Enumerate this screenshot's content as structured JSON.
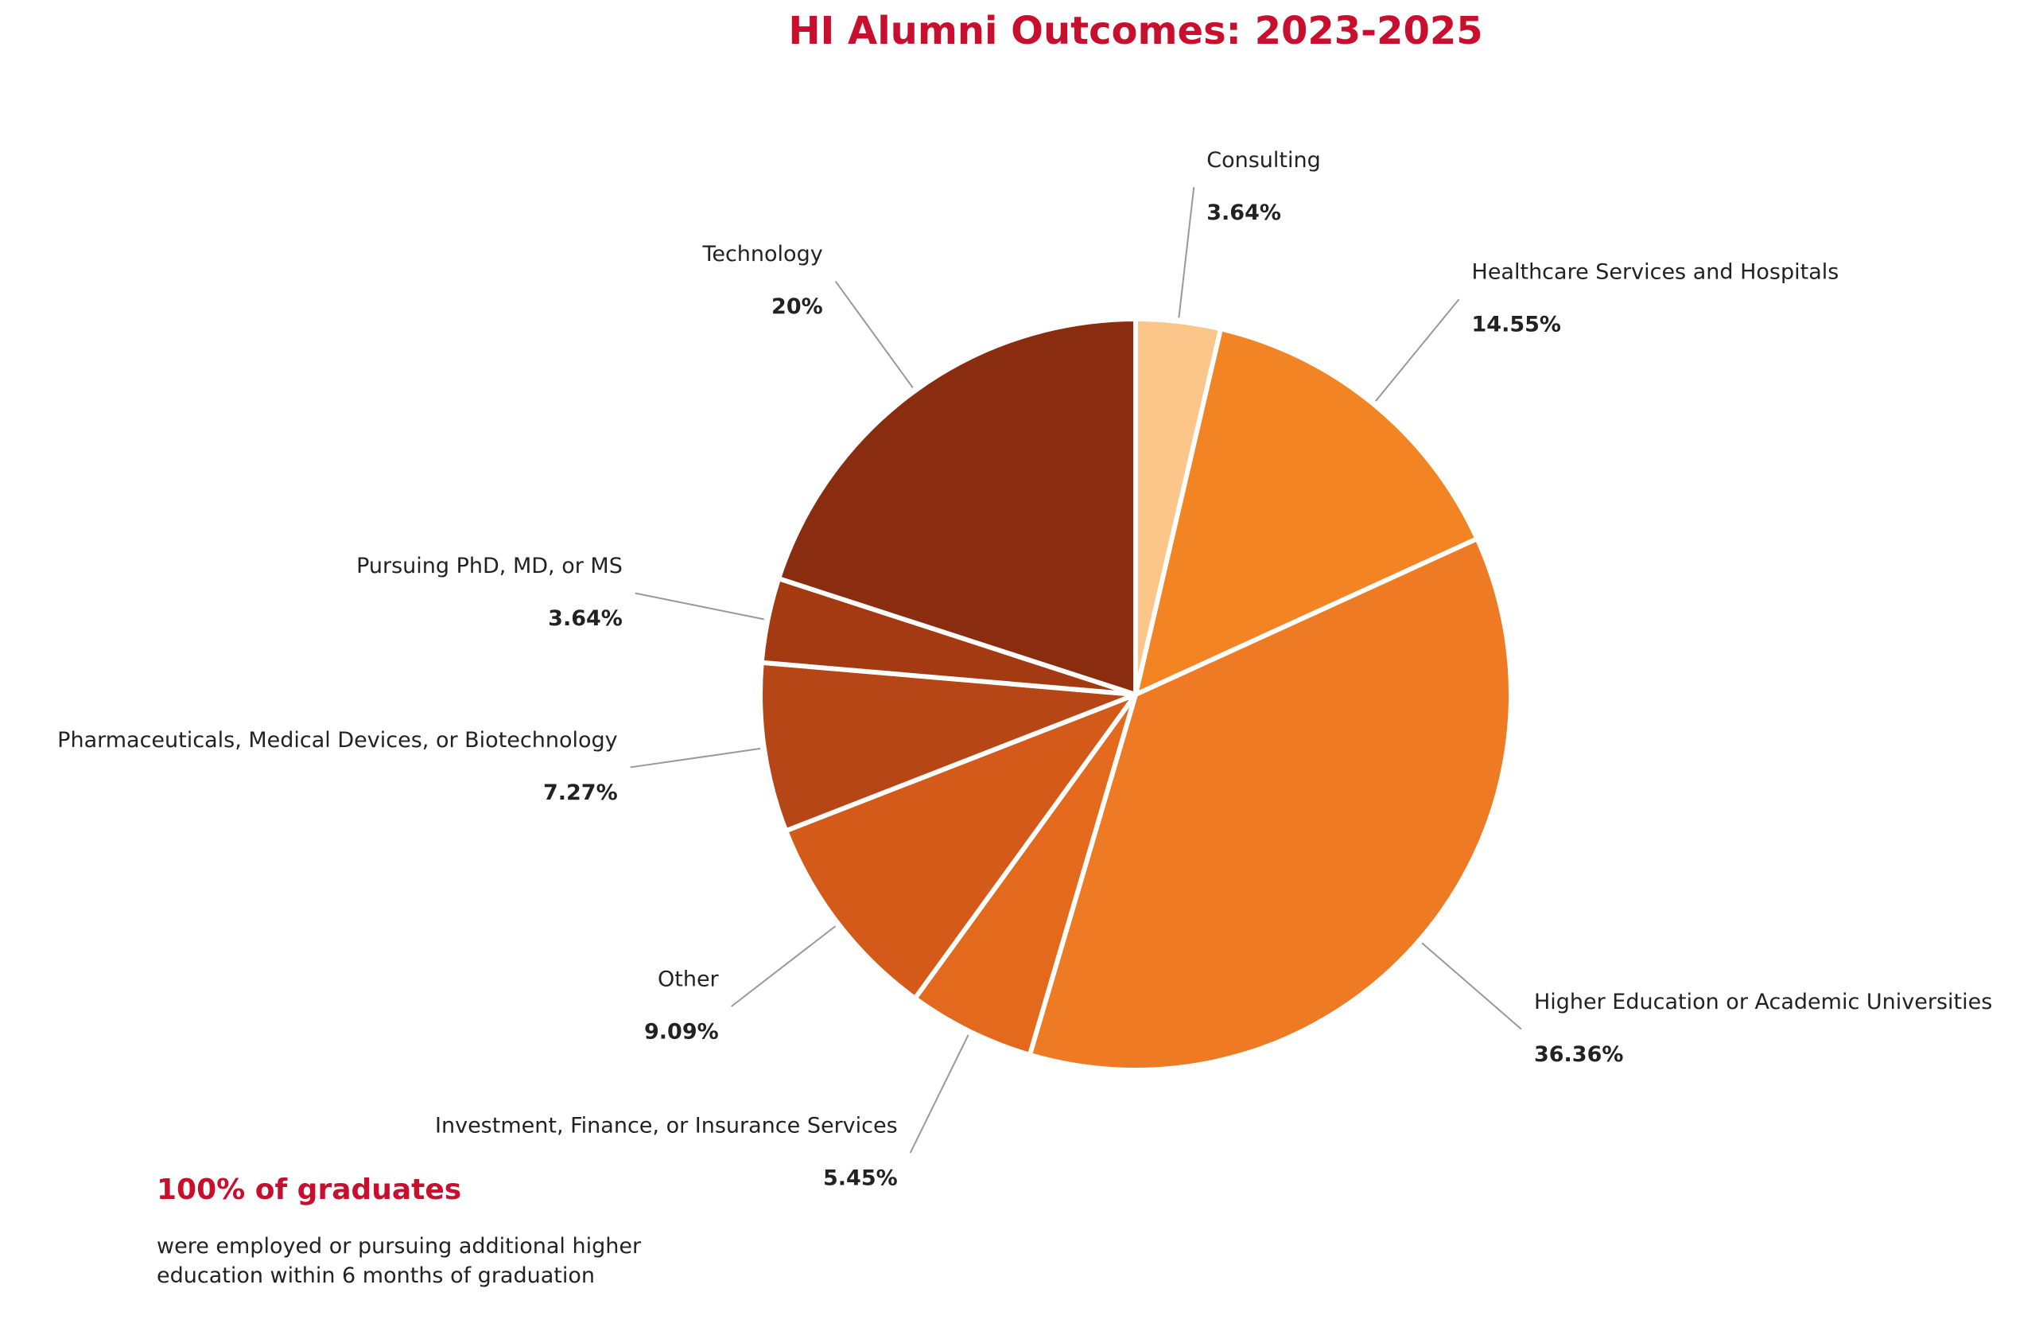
{
  "chart_data": {
    "type": "pie",
    "title": "HI Alumni Outcomes: 2023-2025",
    "categories": [
      "Consulting",
      "Healthcare Services and Hospitals",
      "Higher Education or Academic Universities",
      "Investment, Finance, or Insurance Services",
      "Other",
      "Pharmaceuticals, Medical Devices, or Biotechnology",
      "Pursuing PhD, MD, or MS",
      "Technology"
    ],
    "values": [
      3.64,
      14.55,
      36.36,
      5.45,
      9.09,
      7.27,
      3.64,
      20
    ],
    "value_labels": [
      "3.64%",
      "14.55%",
      "36.36%",
      "5.45%",
      "9.09%",
      "7.27%",
      "3.64%",
      "20%"
    ],
    "colors": [
      "#fcc68a",
      "#f38424",
      "#ee7b23",
      "#e3691c",
      "#d35a19",
      "#b64616",
      "#a33a12",
      "#8a2c10"
    ],
    "annotations": [
      "100% of graduates",
      "were employed or pursuing additional higher education within 6 months of graduation"
    ]
  }
}
